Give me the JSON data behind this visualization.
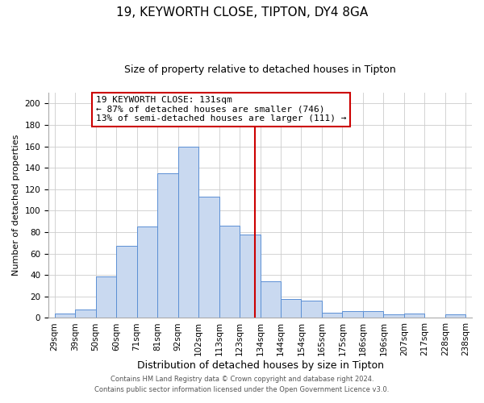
{
  "title": "19, KEYWORTH CLOSE, TIPTON, DY4 8GA",
  "subtitle": "Size of property relative to detached houses in Tipton",
  "xlabel": "Distribution of detached houses by size in Tipton",
  "ylabel": "Number of detached properties",
  "bins": [
    "29sqm",
    "39sqm",
    "50sqm",
    "60sqm",
    "71sqm",
    "81sqm",
    "92sqm",
    "102sqm",
    "113sqm",
    "123sqm",
    "134sqm",
    "144sqm",
    "154sqm",
    "165sqm",
    "175sqm",
    "186sqm",
    "196sqm",
    "207sqm",
    "217sqm",
    "228sqm",
    "238sqm"
  ],
  "values": [
    4,
    8,
    39,
    67,
    85,
    135,
    160,
    113,
    86,
    78,
    34,
    18,
    16,
    5,
    6,
    6,
    3,
    4,
    0,
    3
  ],
  "bar_color": "#c9d9f0",
  "bar_edge_color": "#5b8fd4",
  "bin_starts": [
    29,
    39,
    50,
    60,
    71,
    81,
    92,
    102,
    113,
    123,
    134,
    144,
    154,
    165,
    175,
    186,
    196,
    207,
    217,
    228,
    238
  ],
  "property_line_val": 131,
  "property_line_color": "#cc0000",
  "ylim": [
    0,
    210
  ],
  "yticks": [
    0,
    20,
    40,
    60,
    80,
    100,
    120,
    140,
    160,
    180,
    200
  ],
  "annotation_title": "19 KEYWORTH CLOSE: 131sqm",
  "annotation_line1": "← 87% of detached houses are smaller (746)",
  "annotation_line2": "13% of semi-detached houses are larger (111) →",
  "annotation_box_color": "#ffffff",
  "annotation_box_edge": "#cc0000",
  "footer1": "Contains HM Land Registry data © Crown copyright and database right 2024.",
  "footer2": "Contains public sector information licensed under the Open Government Licence v3.0.",
  "title_fontsize": 11,
  "subtitle_fontsize": 9,
  "xlabel_fontsize": 9,
  "ylabel_fontsize": 8,
  "tick_fontsize": 7.5,
  "annotation_fontsize": 8,
  "footer_fontsize": 6
}
